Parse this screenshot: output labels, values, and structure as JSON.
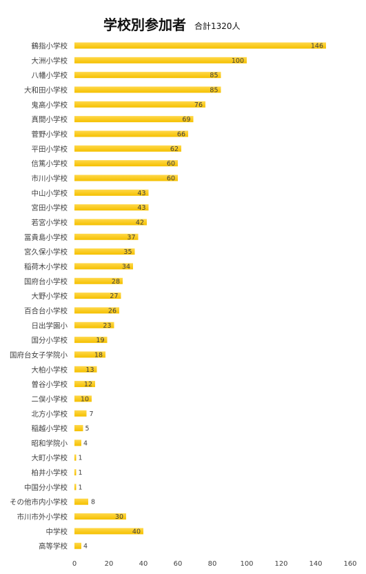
{
  "chart_data": {
    "type": "bar",
    "orientation": "horizontal",
    "title": "学校別参加者",
    "subtitle": "合計1320人",
    "categories": [
      "鶴指小学校",
      "大洲小学校",
      "八幡小学校",
      "大和田小学校",
      "鬼高小学校",
      "真間小学校",
      "菅野小学校",
      "平田小学校",
      "信篤小学校",
      "市川小学校",
      "中山小学校",
      "宮田小学校",
      "若宮小学校",
      "冨貴島小学校",
      "宮久保小学校",
      "稲荷木小学校",
      "国府台小学校",
      "大野小学校",
      "百合台小学校",
      "日出学園小",
      "国分小学校",
      "国府台女子学院小",
      "大柏小学校",
      "曽谷小学校",
      "二俣小学校",
      "北方小学校",
      "稲越小学校",
      "昭和学院小",
      "大町小学校",
      "柏井小学校",
      "中国分小学校",
      "その他市内小学校",
      "市川市外小学校",
      "中学校",
      "高等学校"
    ],
    "values": [
      146,
      100,
      85,
      85,
      76,
      69,
      66,
      62,
      60,
      60,
      43,
      43,
      42,
      37,
      35,
      34,
      28,
      27,
      26,
      23,
      19,
      18,
      13,
      12,
      10,
      7,
      5,
      4,
      1,
      1,
      1,
      8,
      30,
      40,
      4
    ],
    "xlim": [
      0,
      160
    ],
    "xticks": [
      0,
      20,
      40,
      60,
      80,
      100,
      120,
      140,
      160
    ],
    "bar_color": "#f5c000",
    "bar_highlight": "#ffd84a",
    "label_color": "#404040",
    "grid": false,
    "legend": false
  }
}
